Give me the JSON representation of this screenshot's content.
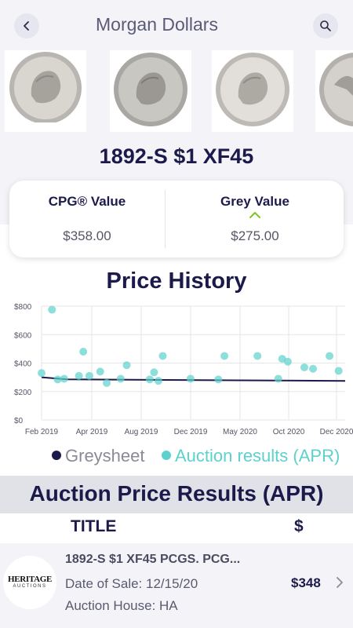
{
  "header": {
    "title": "Morgan Dollars",
    "back_icon": "chevron-left-icon",
    "search_icon": "search-icon"
  },
  "coin": {
    "title": "1892-S $1 XF45",
    "images": [
      "morgan-dollar-obverse-1",
      "morgan-dollar-obverse-2",
      "morgan-dollar-obverse-3",
      "morgan-dollar-reverse"
    ]
  },
  "values": {
    "cpg_label": "CPG® Value",
    "cpg_amount": "$358.00",
    "grey_label": "Grey Value",
    "grey_amount": "$275.00",
    "grey_trend_icon": "chevron-up-icon",
    "trend_color": "#7cc423"
  },
  "history": {
    "title": "Price History"
  },
  "chart_data": {
    "type": "scatter",
    "ylim": [
      0,
      800
    ],
    "y_ticks": [
      "$800",
      "$600",
      "$400",
      "$200",
      "$0"
    ],
    "x_ticks": [
      "Feb 2019",
      "Apr 2019",
      "Aug 2019",
      "Dec 2019",
      "May 2020",
      "Oct 2020",
      "Dec 2020"
    ],
    "grid": true,
    "legend_position": "bottom",
    "series": [
      {
        "name": "Greysheet",
        "type": "line",
        "color": "#1c1a4a",
        "points": [
          [
            "2019-02-01",
            300
          ],
          [
            "2019-04-01",
            285
          ],
          [
            "2020-12-31",
            275
          ]
        ]
      },
      {
        "name": "Auction results (APR)",
        "type": "scatter",
        "color": "#5dd1cd",
        "points": [
          [
            "2019-02-01",
            330
          ],
          [
            "2019-02-25",
            775
          ],
          [
            "2019-03-10",
            285
          ],
          [
            "2019-03-25",
            290
          ],
          [
            "2019-04-28",
            310
          ],
          [
            "2019-05-08",
            480
          ],
          [
            "2019-05-22",
            310
          ],
          [
            "2019-06-16",
            340
          ],
          [
            "2019-07-01",
            260
          ],
          [
            "2019-08-02",
            290
          ],
          [
            "2019-08-16",
            385
          ],
          [
            "2019-10-08",
            285
          ],
          [
            "2019-10-18",
            335
          ],
          [
            "2019-10-28",
            275
          ],
          [
            "2019-11-07",
            450
          ],
          [
            "2020-01-10",
            290
          ],
          [
            "2020-03-14",
            285
          ],
          [
            "2020-03-28",
            450
          ],
          [
            "2020-06-12",
            450
          ],
          [
            "2020-07-30",
            290
          ],
          [
            "2020-08-08",
            430
          ],
          [
            "2020-08-21",
            410
          ],
          [
            "2020-09-28",
            370
          ],
          [
            "2020-10-18",
            360
          ],
          [
            "2020-11-25",
            450
          ],
          [
            "2020-12-16",
            345
          ]
        ]
      }
    ],
    "x_range": [
      "2019-02-01",
      "2020-12-31"
    ]
  },
  "legend": {
    "greysheet": "Greysheet",
    "auction": "Auction results (APR)"
  },
  "auction": {
    "section_title": "Auction Price Results (APR)",
    "col_title": "TITLE",
    "col_price": "$",
    "rows": [
      {
        "logo_main": "HERITAGE",
        "logo_sub": "AUCTIONS",
        "title": "1892-S $1 XF45 PCGS. PCG...",
        "date_line": "Date of Sale:  12/15/20",
        "house_line": "Auction House:  HA",
        "price": "$348"
      }
    ]
  }
}
